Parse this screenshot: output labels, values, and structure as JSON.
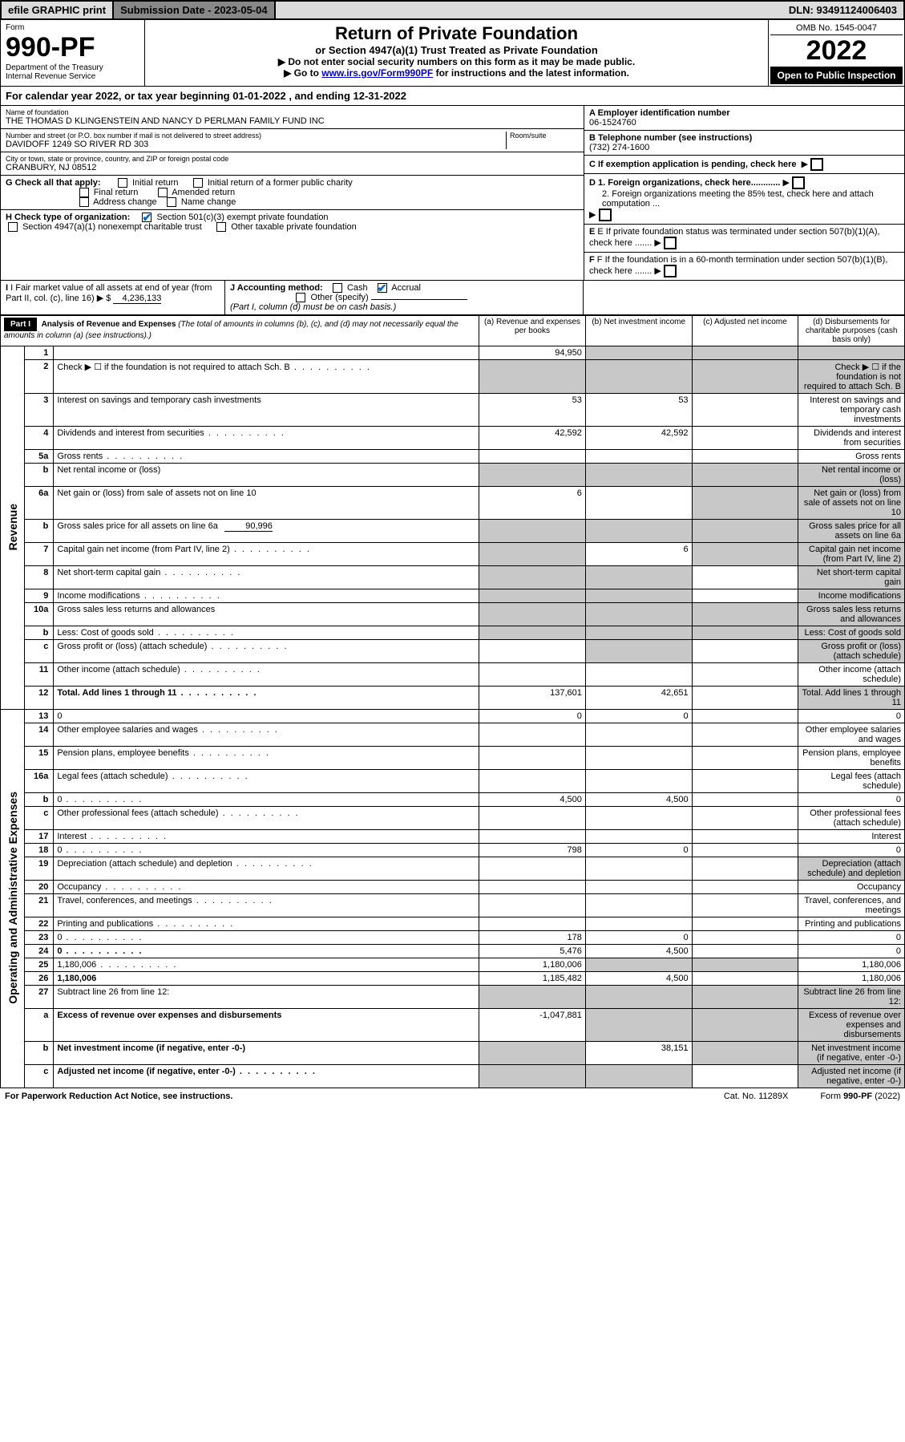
{
  "topbar": {
    "efile": "efile GRAPHIC print",
    "submission_label": "Submission Date - 2023-05-04",
    "dln": "DLN: 93491124006403"
  },
  "header": {
    "form_word": "Form",
    "form_number": "990-PF",
    "dept": "Department of the Treasury",
    "irs": "Internal Revenue Service",
    "title": "Return of Private Foundation",
    "subtitle": "or Section 4947(a)(1) Trust Treated as Private Foundation",
    "inst1": "▶ Do not enter social security numbers on this form as it may be made public.",
    "inst2_pre": "▶ Go to ",
    "inst2_link": "www.irs.gov/Form990PF",
    "inst2_post": " for instructions and the latest information.",
    "omb": "OMB No. 1545-0047",
    "year": "2022",
    "open": "Open to Public Inspection"
  },
  "calyear": "For calendar year 2022, or tax year beginning 01-01-2022                               , and ending 12-31-2022",
  "ident": {
    "name_label": "Name of foundation",
    "name": "THE THOMAS D KLINGENSTEIN AND NANCY D PERLMAN FAMILY FUND INC",
    "addr_label": "Number and street (or P.O. box number if mail is not delivered to street address)",
    "addr": "DAVIDOFF 1249 SO RIVER RD 303",
    "room_label": "Room/suite",
    "city_label": "City or town, state or province, country, and ZIP or foreign postal code",
    "city": "CRANBURY, NJ  08512",
    "a_label": "A Employer identification number",
    "a_val": "06-1524760",
    "b_label": "B Telephone number (see instructions)",
    "b_val": "(732) 274-1600",
    "c_label": "C If exemption application is pending, check here",
    "d1": "D 1. Foreign organizations, check here............",
    "d2": "2. Foreign organizations meeting the 85% test, check here and attach computation ...",
    "e": "E  If private foundation status was terminated under section 507(b)(1)(A), check here .......",
    "f": "F  If the foundation is in a 60-month termination under section 507(b)(1)(B), check here .......",
    "g_label": "G Check all that apply:",
    "g_opts": [
      "Initial return",
      "Initial return of a former public charity",
      "Final return",
      "Amended return",
      "Address change",
      "Name change"
    ],
    "h_label": "H Check type of organization:",
    "h1": "Section 501(c)(3) exempt private foundation",
    "h2": "Section 4947(a)(1) nonexempt charitable trust",
    "h3": "Other taxable private foundation",
    "i_label": "I Fair market value of all assets at end of year (from Part II, col. (c), line 16)",
    "i_val": "4,236,133",
    "j_label": "J Accounting method:",
    "j_cash": "Cash",
    "j_accrual": "Accrual",
    "j_other": "Other (specify)",
    "j_note": "(Part I, column (d) must be on cash basis.)"
  },
  "part1": {
    "hdr": "Part I",
    "hdr_title": "Analysis of Revenue and Expenses",
    "hdr_note": "(The total of amounts in columns (b), (c), and (d) may not necessarily equal the amounts in column (a) (see instructions).)",
    "col_a": "(a)   Revenue and expenses per books",
    "col_b": "(b)   Net investment income",
    "col_c": "(c)   Adjusted net income",
    "col_d": "(d)   Disbursements for charitable purposes (cash basis only)",
    "rot_rev": "Revenue",
    "rot_exp": "Operating and Administrative Expenses",
    "rows": [
      {
        "n": "1",
        "d": "",
        "a": "94,950",
        "b": "",
        "c": "",
        "grey_bcd": true
      },
      {
        "n": "2",
        "d": "Check ▶ ☐ if the foundation is not required to attach Sch. B",
        "dots": true,
        "grey_all": true
      },
      {
        "n": "3",
        "d": "Interest on savings and temporary cash investments",
        "a": "53",
        "b": "53"
      },
      {
        "n": "4",
        "d": "Dividends and interest from securities",
        "dots": true,
        "a": "42,592",
        "b": "42,592"
      },
      {
        "n": "5a",
        "d": "Gross rents",
        "dots": true
      },
      {
        "n": "b",
        "d": "Net rental income or (loss)",
        "inline": true,
        "grey_all": true
      },
      {
        "n": "6a",
        "d": "Net gain or (loss) from sale of assets not on line 10",
        "a": "6",
        "grey_bcd_partial": true
      },
      {
        "n": "b",
        "d": "Gross sales price for all assets on line 6a",
        "inline": true,
        "inline_val": "90,996",
        "grey_all": true
      },
      {
        "n": "7",
        "d": "Capital gain net income (from Part IV, line 2)",
        "dots": true,
        "b": "6",
        "grey_acd": true
      },
      {
        "n": "8",
        "d": "Net short-term capital gain",
        "dots": true,
        "grey_abd": true
      },
      {
        "n": "9",
        "d": "Income modifications",
        "dots": true,
        "grey_abd": true
      },
      {
        "n": "10a",
        "d": "Gross sales less returns and allowances",
        "inline": true,
        "grey_all": true
      },
      {
        "n": "b",
        "d": "Less: Cost of goods sold",
        "dots": true,
        "inline": true,
        "grey_all": true
      },
      {
        "n": "c",
        "d": "Gross profit or (loss) (attach schedule)",
        "dots": true,
        "grey_bd": true
      },
      {
        "n": "11",
        "d": "Other income (attach schedule)",
        "dots": true
      },
      {
        "n": "12",
        "d": "Total. Add lines 1 through 11",
        "dots": true,
        "bold": true,
        "a": "137,601",
        "b": "42,651",
        "grey_d": true
      },
      {
        "n": "13",
        "d": "0",
        "a": "0",
        "b": "0"
      },
      {
        "n": "14",
        "d": "Other employee salaries and wages",
        "dots": true
      },
      {
        "n": "15",
        "d": "Pension plans, employee benefits",
        "dots": true
      },
      {
        "n": "16a",
        "d": "Legal fees (attach schedule)",
        "dots": true
      },
      {
        "n": "b",
        "d": "0",
        "dots": true,
        "a": "4,500",
        "b": "4,500"
      },
      {
        "n": "c",
        "d": "Other professional fees (attach schedule)",
        "dots": true
      },
      {
        "n": "17",
        "d": "Interest",
        "dots": true
      },
      {
        "n": "18",
        "d": "0",
        "dots": true,
        "a": "798",
        "b": "0"
      },
      {
        "n": "19",
        "d": "Depreciation (attach schedule) and depletion",
        "dots": true,
        "grey_d": true
      },
      {
        "n": "20",
        "d": "Occupancy",
        "dots": true
      },
      {
        "n": "21",
        "d": "Travel, conferences, and meetings",
        "dots": true
      },
      {
        "n": "22",
        "d": "Printing and publications",
        "dots": true
      },
      {
        "n": "23",
        "d": "0",
        "dots": true,
        "a": "178",
        "b": "0"
      },
      {
        "n": "24",
        "d": "0",
        "dots": true,
        "bold": true,
        "a": "5,476",
        "b": "4,500"
      },
      {
        "n": "25",
        "d": "1,180,006",
        "dots": true,
        "a": "1,180,006",
        "grey_bc": true
      },
      {
        "n": "26",
        "d": "1,180,006",
        "bold": true,
        "a": "1,185,482",
        "b": "4,500"
      },
      {
        "n": "27",
        "d": "Subtract line 26 from line 12:",
        "grey_all": true
      },
      {
        "n": "a",
        "d": "Excess of revenue over expenses and disbursements",
        "bold": true,
        "a": "-1,047,881",
        "grey_bcd": true
      },
      {
        "n": "b",
        "d": "Net investment income (if negative, enter -0-)",
        "bold": true,
        "b": "38,151",
        "grey_acd": true
      },
      {
        "n": "c",
        "d": "Adjusted net income (if negative, enter -0-)",
        "dots": true,
        "bold": true,
        "grey_abd": true
      }
    ]
  },
  "footer": {
    "left": "For Paperwork Reduction Act Notice, see instructions.",
    "mid": "Cat. No. 11289X",
    "right": "Form 990-PF (2022)"
  }
}
